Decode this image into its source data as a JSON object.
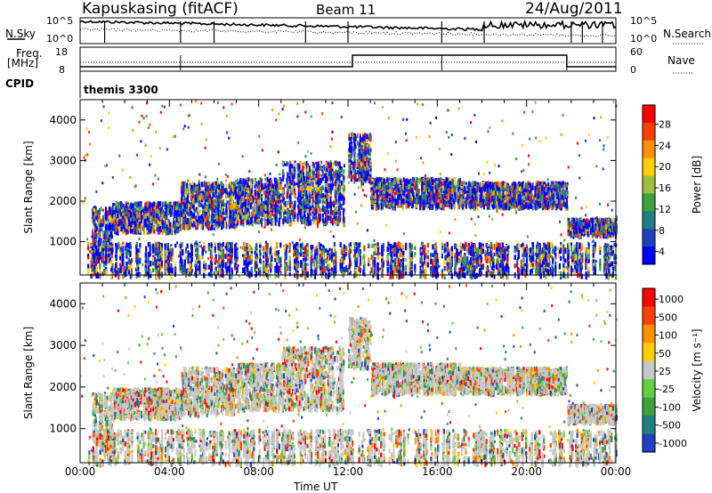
{
  "header": {
    "station": "Kapuskasing (fitACF)",
    "beam": "Beam 11",
    "date": "24/Aug/2011"
  },
  "top_panels": {
    "nsky_label": "N.Sky",
    "nsearch_label": "N.Search",
    "nsky_tick_high": "10^5",
    "nsky_tick_low": "10^0",
    "freq_label": "Freq.",
    "freq_unit": "[MHz]",
    "freq_ticks": [
      "18",
      "8"
    ],
    "nave_label": "Nave",
    "nave_ticks": [
      "60",
      "0"
    ],
    "cpid_label": "CPID",
    "cpid_value": "themis 3300"
  },
  "chart_data": [
    {
      "type": "heatmap",
      "panel": "power",
      "ylabel": "Slant Range [km]",
      "yticks": [
        "4000",
        "3000",
        "2000",
        "1000"
      ],
      "ylim": [
        180,
        4500
      ],
      "xlim": [
        "00:00",
        "24:00"
      ],
      "colorbar_label": "Power [dB]",
      "colorbar_ticks": [
        "28",
        "24",
        "20",
        "16",
        "12",
        "8",
        "4"
      ],
      "colormap": [
        "#0000ff",
        "#2040c0",
        "#208080",
        "#40a040",
        "#a0c040",
        "#ffd000",
        "#ff9000",
        "#ff4000",
        "#ff0000"
      ],
      "bands": [
        {
          "t": [
            0.5,
            1.4
          ],
          "r": [
            600,
            1900
          ]
        },
        {
          "t": [
            1.4,
            4.5
          ],
          "r": [
            1300,
            2000
          ]
        },
        {
          "t": [
            4.5,
            7.0
          ],
          "r": [
            1400,
            2500
          ]
        },
        {
          "t": [
            7.0,
            9.0
          ],
          "r": [
            1500,
            2600
          ]
        },
        {
          "t": [
            9.0,
            11.8
          ],
          "r": [
            1500,
            3000
          ]
        },
        {
          "t": [
            12.0,
            13.0
          ],
          "r": [
            2500,
            3700
          ]
        },
        {
          "t": [
            13.0,
            17.0
          ],
          "r": [
            1900,
            2600
          ]
        },
        {
          "t": [
            17.0,
            21.8
          ],
          "r": [
            1900,
            2500
          ]
        },
        {
          "t": [
            21.8,
            24.0
          ],
          "r": [
            1200,
            1600
          ]
        },
        {
          "t": [
            0.3,
            24.0
          ],
          "r": [
            200,
            1000
          ]
        }
      ]
    },
    {
      "type": "heatmap",
      "panel": "velocity",
      "ylabel": "Slant Range [km]",
      "yticks": [
        "4000",
        "3000",
        "2000",
        "1000"
      ],
      "ylim": [
        180,
        4500
      ],
      "xlim": [
        "00:00",
        "24:00"
      ],
      "xlabel": "Time UT",
      "xticks": [
        "00:00",
        "04:00",
        "08:00",
        "12:00",
        "16:00",
        "20:00",
        "00:00"
      ],
      "colorbar_label": "Velocity [m s^-1]",
      "colorbar_ticks": [
        "1000",
        "500",
        "100",
        "50",
        "25",
        "-25",
        "-100",
        "-500",
        "-1000"
      ],
      "colormap": [
        "#2040c0",
        "#208080",
        "#40a040",
        "#60d040",
        "#c8c8c8",
        "#ffd000",
        "#ff9000",
        "#ff4000",
        "#ff0000"
      ]
    }
  ]
}
